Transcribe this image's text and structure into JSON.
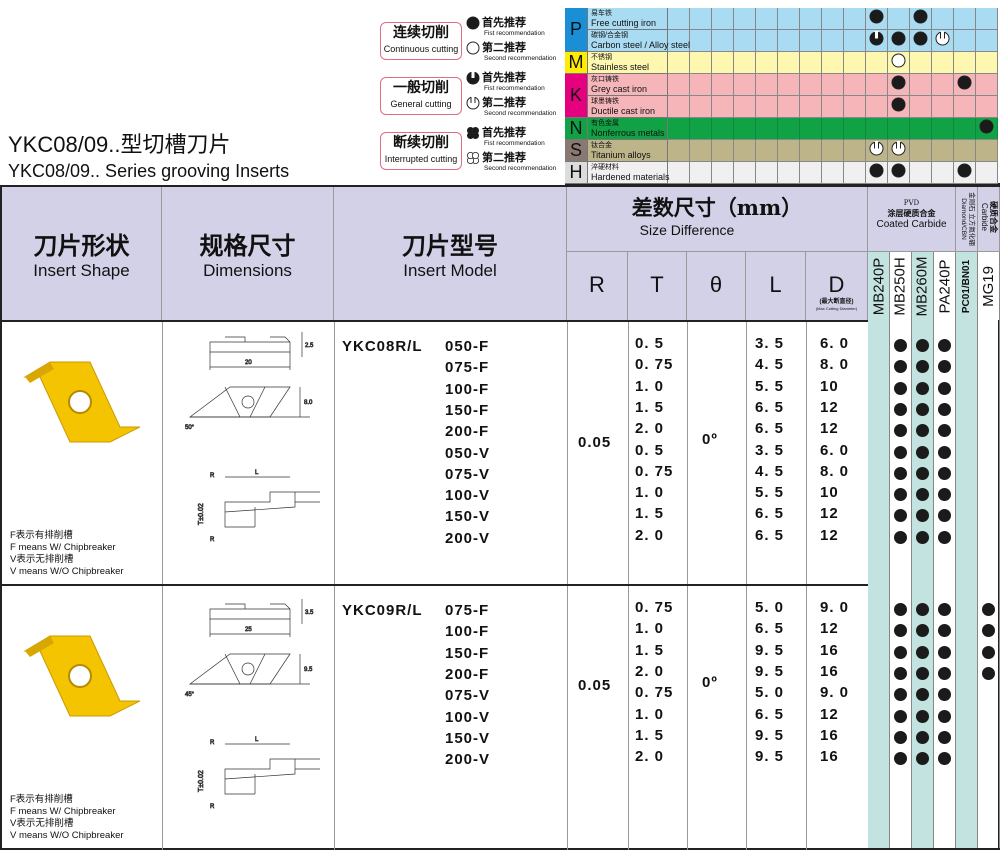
{
  "title": {
    "cn": "YKC08/09..型切槽刀片",
    "en": "YKC08/09.. Series grooving Inserts"
  },
  "legend": [
    {
      "cn": "连续切削",
      "en": "Continuous cutting",
      "first": {
        "cn": "首先推荐",
        "en": "Fist recommendation",
        "icon": "full-circle"
      },
      "second": {
        "cn": "第二推荐",
        "en": "Second recommendation",
        "icon": "open-circle"
      }
    },
    {
      "cn": "一般切削",
      "en": "General cutting",
      "first": {
        "cn": "首先推荐",
        "en": "Fist recommendation",
        "icon": "notched-circle"
      },
      "second": {
        "cn": "第二推荐",
        "en": "Second recommendation",
        "icon": "open-notched-circle"
      }
    },
    {
      "cn": "断续切削",
      "en": "Interrupted cutting",
      "first": {
        "cn": "首先推荐",
        "en": "Fist recommendation",
        "icon": "cross-circle"
      },
      "second": {
        "cn": "第二推荐",
        "en": "Second recommendation",
        "icon": "open-cross-circle"
      }
    }
  ],
  "materials": {
    "groups": [
      {
        "letter": "P",
        "color": "#1a8fd6",
        "bg": "#a9dcf3",
        "rows": [
          {
            "cn": "易车铁",
            "en": "Free cutting iron",
            "marks": {
              "9": "full",
              "11": "full"
            }
          },
          {
            "cn": "碳钢/合金钢",
            "en": "Carbon steel / Alloy steel",
            "marks": {
              "9": "notched",
              "10": "full",
              "11": "full",
              "12": "open-notched"
            }
          }
        ]
      },
      {
        "letter": "M",
        "color": "#ffec00",
        "bg": "#fdf7b0",
        "rows": [
          {
            "cn": "不锈钢",
            "en": "Stainless steel",
            "marks": {
              "10": "open"
            }
          }
        ]
      },
      {
        "letter": "K",
        "color": "#e4007f",
        "bg": "#f5b5b9",
        "rows": [
          {
            "cn": "灰口铸铁",
            "en": "Grey cast iron",
            "marks": {
              "10": "full",
              "13": "full"
            }
          },
          {
            "cn": "球墨铸铁",
            "en": "Ductile cast iron",
            "marks": {
              "10": "full"
            }
          }
        ]
      },
      {
        "letter": "N",
        "color": "#10a245",
        "bg": "#10a245",
        "rows": [
          {
            "cn": "有色金属",
            "en": "Nonferrous metals",
            "marks": {
              "14": "full"
            }
          }
        ]
      },
      {
        "letter": "S",
        "color": "#8a7872",
        "bg": "#bdb48a",
        "rows": [
          {
            "cn": "钛合金",
            "en": "Titanium alloys",
            "marks": {
              "9": "open-notched",
              "10": "open-notched"
            }
          }
        ]
      },
      {
        "letter": "H",
        "color": "#dcdcdc",
        "bg": "#f0f0f0",
        "rows": [
          {
            "cn": "淬硬材料",
            "en": "Hardened materials",
            "marks": {
              "9": "full",
              "10": "full",
              "13": "full"
            }
          }
        ]
      }
    ]
  },
  "header": {
    "shape": {
      "cn": "刀片形状",
      "en": "Insert Shape"
    },
    "dims": {
      "cn": "规格尺寸",
      "en": "Dimensions"
    },
    "model": {
      "cn": "刀片型号",
      "en": "Insert Model"
    },
    "size": {
      "cn": "差数尺寸（mm）",
      "en": "Size Difference"
    },
    "cols": [
      "R",
      "T",
      "θ",
      "L",
      "D"
    ],
    "d_note_cn": "(最大断直径)",
    "d_note_en": "(Max Cutting Diameter)",
    "pvd": "PVD",
    "coated_cn": "涂层硬质合金",
    "coated_en": "Coated Carbide",
    "diamond_cn": "金刚石 立方氮化硼",
    "diamond_en": "Diamond/CBN",
    "carbide_cn": "硬质合金",
    "carbide_en": "Carbide",
    "grades": [
      "MB240P",
      "MB250H",
      "MB260M",
      "PA240P",
      "PC01/BN01",
      "MG19"
    ]
  },
  "colors": {
    "header_bg": "#d3d1e7",
    "teal": "#c2e3df",
    "insert": "#f5c400"
  },
  "sections": [
    {
      "prefix": "YKC08R/L",
      "R": "0.05",
      "theta": "0º",
      "drawing": {
        "thickness": "2.5",
        "length": "20",
        "height": "8.0",
        "angle": "50°",
        "radius": "R",
        "l": "L",
        "tol": "T±0.02"
      },
      "notes": [
        "F表示有排削槽",
        "F means W/ Chipbreaker",
        "V表示无排削槽",
        "V means W/O Chipbreaker"
      ],
      "rows": [
        {
          "model": "050-F",
          "T": "0. 5",
          "L": "3. 5",
          "D": "6. 0",
          "grades": [
            0,
            1,
            1,
            1,
            0,
            0
          ]
        },
        {
          "model": "075-F",
          "T": "0. 75",
          "L": "4. 5",
          "D": "8. 0",
          "grades": [
            0,
            1,
            1,
            1,
            0,
            0
          ]
        },
        {
          "model": "100-F",
          "T": "1. 0",
          "L": "5. 5",
          "D": "10",
          "grades": [
            0,
            1,
            1,
            1,
            0,
            0
          ]
        },
        {
          "model": "150-F",
          "T": "1. 5",
          "L": "6. 5",
          "D": "12",
          "grades": [
            0,
            1,
            1,
            1,
            0,
            0
          ]
        },
        {
          "model": "200-F",
          "T": "2. 0",
          "L": "6. 5",
          "D": "12",
          "grades": [
            0,
            1,
            1,
            1,
            0,
            0
          ]
        },
        {
          "model": "050-V",
          "T": "0. 5",
          "L": "3. 5",
          "D": "6. 0",
          "grades": [
            0,
            1,
            1,
            1,
            0,
            0
          ]
        },
        {
          "model": "075-V",
          "T": "0. 75",
          "L": "4. 5",
          "D": "8. 0",
          "grades": [
            0,
            1,
            1,
            1,
            0,
            0
          ]
        },
        {
          "model": "100-V",
          "T": "1. 0",
          "L": "5. 5",
          "D": "10",
          "grades": [
            0,
            1,
            1,
            1,
            0,
            0
          ]
        },
        {
          "model": "150-V",
          "T": "1. 5",
          "L": "6. 5",
          "D": "12",
          "grades": [
            0,
            1,
            1,
            1,
            0,
            0
          ]
        },
        {
          "model": "200-V",
          "T": "2. 0",
          "L": "6. 5",
          "D": "12",
          "grades": [
            0,
            1,
            1,
            1,
            0,
            0
          ]
        }
      ]
    },
    {
      "prefix": "YKC09R/L",
      "R": "0.05",
      "theta": "0º",
      "drawing": {
        "thickness": "3.5",
        "length": "25",
        "height": "9.5",
        "angle": "45°",
        "radius": "R",
        "l": "L",
        "tol": "T±0.02"
      },
      "notes": [
        "F表示有排削槽",
        "F means W/ Chipbreaker",
        "V表示无排削槽",
        "V means W/O Chipbreaker"
      ],
      "rows": [
        {
          "model": "075-F",
          "T": "0. 75",
          "L": "5. 0",
          "D": "9. 0",
          "grades": [
            0,
            1,
            1,
            1,
            0,
            1
          ]
        },
        {
          "model": "100-F",
          "T": "1. 0",
          "L": "6. 5",
          "D": "12",
          "grades": [
            0,
            1,
            1,
            1,
            0,
            1
          ]
        },
        {
          "model": "150-F",
          "T": "1. 5",
          "L": "9. 5",
          "D": "16",
          "grades": [
            0,
            1,
            1,
            1,
            0,
            1
          ]
        },
        {
          "model": "200-F",
          "T": "2. 0",
          "L": "9. 5",
          "D": "16",
          "grades": [
            0,
            1,
            1,
            1,
            0,
            1
          ]
        },
        {
          "model": "075-V",
          "T": "0. 75",
          "L": "5. 0",
          "D": "9. 0",
          "grades": [
            0,
            1,
            1,
            1,
            0,
            0
          ]
        },
        {
          "model": "100-V",
          "T": "1. 0",
          "L": "6. 5",
          "D": "12",
          "grades": [
            0,
            1,
            1,
            1,
            0,
            0
          ]
        },
        {
          "model": "150-V",
          "T": "1. 5",
          "L": "9. 5",
          "D": "16",
          "grades": [
            0,
            1,
            1,
            1,
            0,
            0
          ]
        },
        {
          "model": "200-V",
          "T": "2. 0",
          "L": "9. 5",
          "D": "16",
          "grades": [
            0,
            1,
            1,
            1,
            0,
            0
          ]
        }
      ]
    }
  ]
}
